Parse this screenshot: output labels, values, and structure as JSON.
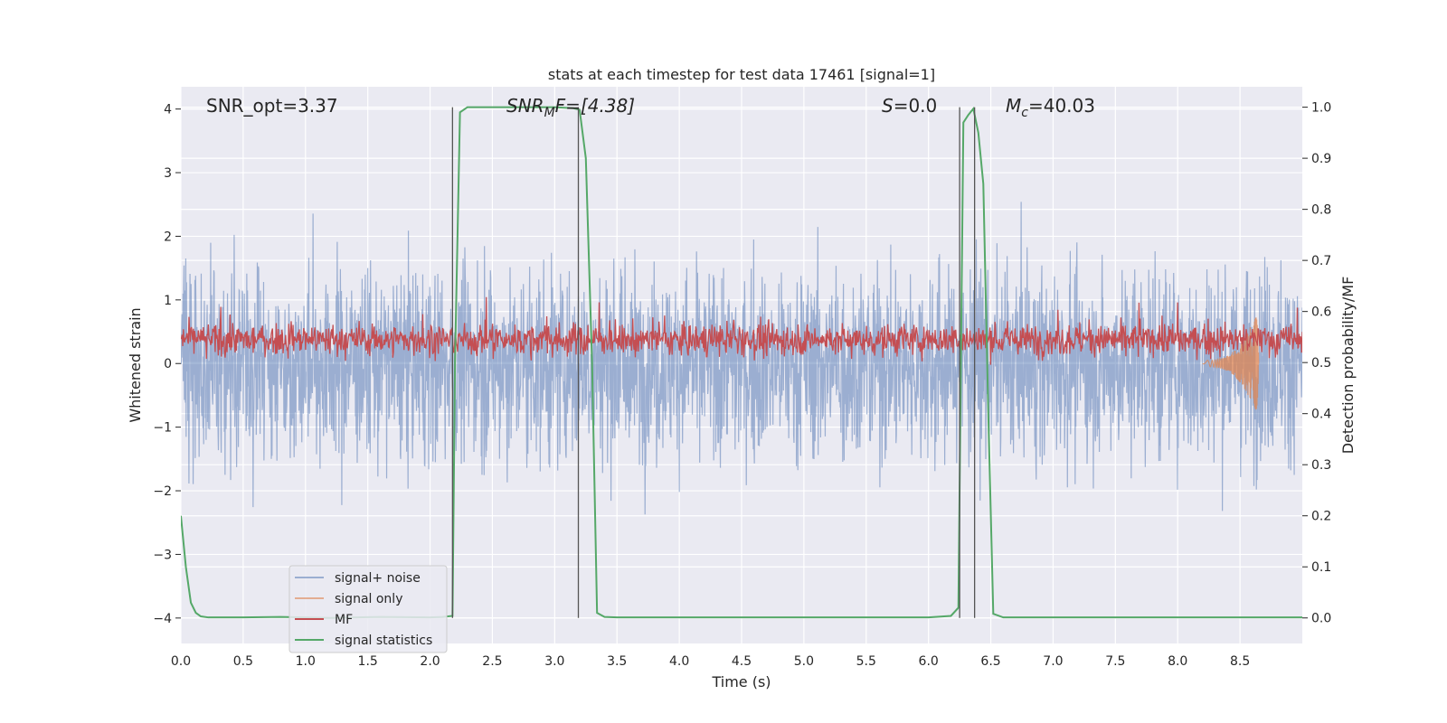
{
  "chart_data": {
    "type": "line",
    "title": "stats at each timestep for test data 17461 [signal=1]",
    "xlabel": "Time (s)",
    "ylabel_left": "Whitened strain",
    "ylabel_right": "Detection probability/MF",
    "xlim": [
      0,
      9.0
    ],
    "ylim_left": [
      -4.4,
      4.35
    ],
    "ylim_right": [
      -0.05,
      1.04
    ],
    "x_ticks": [
      0.0,
      0.5,
      1.0,
      1.5,
      2.0,
      2.5,
      3.0,
      3.5,
      4.0,
      4.5,
      5.0,
      5.5,
      6.0,
      6.5,
      7.0,
      7.5,
      8.0,
      8.5
    ],
    "x_tick_labels": [
      "0.0",
      "0.5",
      "1.0",
      "1.5",
      "2.0",
      "2.5",
      "3.0",
      "3.5",
      "4.0",
      "4.5",
      "5.0",
      "5.5",
      "6.0",
      "6.5",
      "7.0",
      "7.5",
      "8.0",
      "8.5"
    ],
    "y_left_ticks": [
      4,
      3,
      2,
      1,
      0,
      -1,
      -2,
      -3,
      -4
    ],
    "y_left_tick_labels": [
      "4",
      "3",
      "2",
      "1",
      "0",
      "−1",
      "−2",
      "−3",
      "−4"
    ],
    "y_right_ticks": [
      1.0,
      0.9,
      0.8,
      0.7,
      0.6,
      0.5,
      0.4,
      0.3,
      0.2,
      0.1,
      0.0
    ],
    "y_right_tick_labels": [
      "1.0",
      "0.9",
      "0.8",
      "0.7",
      "0.6",
      "0.5",
      "0.4",
      "0.3",
      "0.2",
      "0.1",
      "0.0"
    ],
    "grid": true,
    "legend_position": "lower-left",
    "annotations": {
      "snr_opt": "SNR_opt=3.37",
      "snr_mf_prefix": "SNR",
      "snr_mf_sub": "M",
      "snr_mf_suffix": "F=[4.38]",
      "s_label_italic": "S",
      "s_label_rest": "=0.0",
      "mc_italic": "M",
      "mc_sub": "c",
      "mc_rest": "=40.03"
    },
    "vertical_lines_x": [
      2.18,
      3.19,
      6.25,
      6.37
    ],
    "series": [
      {
        "name": "signal+ noise",
        "axis": "left",
        "color": "#4c72b0",
        "description_values": "dense whitened noise, roughly uniform amplitude spanning about -4 to 4"
      },
      {
        "name": "signal only",
        "axis": "left",
        "color": "#dd8452",
        "x": [
          8.2,
          8.3,
          8.4,
          8.5,
          8.55,
          8.6,
          8.63,
          8.65
        ],
        "values": [
          0.02,
          -0.05,
          0.08,
          -0.2,
          0.3,
          -0.5,
          0.9,
          -0.8
        ]
      },
      {
        "name": "MF",
        "axis": "right",
        "color": "#c44e52",
        "description_values": "noisy match-filter output fluctuating around 0.54, mostly between 0.50 and 0.60, peaks near 0.63"
      },
      {
        "name": "signal statistics",
        "axis": "right",
        "color": "#55a868",
        "x": [
          0.0,
          0.04,
          0.08,
          0.12,
          0.16,
          0.22,
          0.3,
          0.5,
          0.8,
          1.2,
          1.6,
          2.0,
          2.1,
          2.18,
          2.2,
          2.24,
          2.3,
          2.5,
          2.8,
          3.0,
          3.15,
          3.2,
          3.25,
          3.3,
          3.34,
          3.4,
          3.5,
          4.0,
          5.0,
          6.0,
          6.18,
          6.24,
          6.28,
          6.32,
          6.36,
          6.4,
          6.44,
          6.48,
          6.52,
          6.6,
          7.0,
          8.0,
          9.0
        ],
        "values": [
          0.2,
          0.1,
          0.03,
          0.01,
          0.003,
          0.001,
          0.001,
          0.001,
          0.002,
          0.0,
          0.002,
          0.001,
          0.002,
          0.004,
          0.5,
          0.99,
          1.0,
          1.0,
          1.0,
          1.0,
          0.998,
          0.995,
          0.9,
          0.5,
          0.01,
          0.002,
          0.001,
          0.001,
          0.001,
          0.001,
          0.004,
          0.02,
          0.97,
          0.985,
          0.997,
          0.95,
          0.85,
          0.4,
          0.008,
          0.001,
          0.001,
          0.001,
          0.001
        ]
      }
    ]
  }
}
